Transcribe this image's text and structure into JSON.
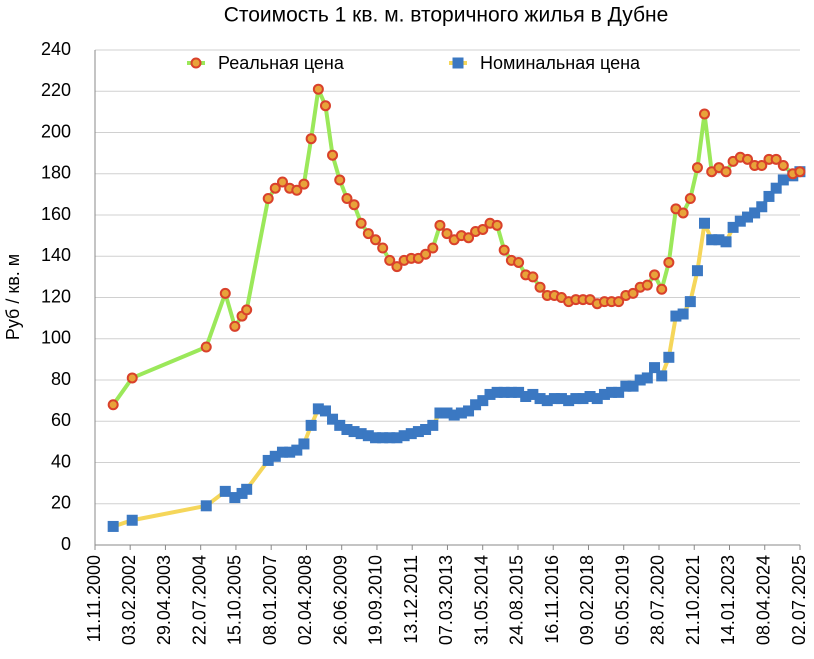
{
  "chart_data": {
    "type": "line",
    "title": "Стоимость 1 кв. м. вторичного жилья в Дубне",
    "y_label": "Руб / кв. м",
    "x": [
      "2001-07-01",
      "2002-03-01",
      "2004-10-01",
      "2005-06-01",
      "2005-10-01",
      "2006-01-01",
      "2006-03-01",
      "2006-12-01",
      "2007-03-01",
      "2007-06-01",
      "2007-09-01",
      "2007-12-01",
      "2008-03-01",
      "2008-06-01",
      "2008-09-01",
      "2008-12-01",
      "2009-03-01",
      "2009-06-01",
      "2009-09-01",
      "2009-12-01",
      "2010-03-01",
      "2010-06-01",
      "2010-09-01",
      "2010-12-01",
      "2011-03-01",
      "2011-06-01",
      "2011-09-01",
      "2011-12-01",
      "2012-03-01",
      "2012-06-01",
      "2012-09-01",
      "2012-12-01",
      "2013-03-01",
      "2013-06-01",
      "2013-09-01",
      "2013-12-01",
      "2014-03-01",
      "2014-06-01",
      "2014-09-01",
      "2014-12-01",
      "2015-03-01",
      "2015-06-01",
      "2015-09-01",
      "2015-12-01",
      "2016-03-01",
      "2016-06-01",
      "2016-09-01",
      "2016-12-01",
      "2017-03-01",
      "2017-06-01",
      "2017-09-01",
      "2017-12-01",
      "2018-03-01",
      "2018-06-01",
      "2018-09-01",
      "2018-12-01",
      "2019-03-01",
      "2019-06-01",
      "2019-09-01",
      "2019-12-01",
      "2020-03-01",
      "2020-06-01",
      "2020-09-01",
      "2020-12-01",
      "2021-03-01",
      "2021-06-01",
      "2021-09-01",
      "2021-12-01",
      "2022-03-01",
      "2022-06-01",
      "2022-09-01",
      "2022-12-01",
      "2023-03-01",
      "2023-06-01",
      "2023-09-01",
      "2023-12-01",
      "2024-03-01",
      "2024-06-01",
      "2024-09-01",
      "2024-12-01",
      "2025-04-01",
      "2025-07-01"
    ],
    "series": [
      {
        "name": "Реальная цена",
        "color": "#9be85a",
        "marker_color": "#d9412b",
        "marker_fill": "#e8a33a",
        "marker": "circle",
        "values": [
          68,
          81,
          96,
          122,
          106,
          111,
          114,
          168,
          173,
          176,
          173,
          172,
          175,
          197,
          221,
          213,
          189,
          177,
          168,
          165,
          156,
          151,
          148,
          144,
          138,
          135,
          138,
          139,
          139,
          141,
          144,
          155,
          151,
          148,
          150,
          149,
          152,
          153,
          156,
          155,
          143,
          138,
          137,
          131,
          130,
          125,
          121,
          121,
          120,
          118,
          119,
          119,
          119,
          117,
          118,
          118,
          118,
          121,
          122,
          125,
          126,
          131,
          124,
          137,
          163,
          161,
          168,
          183,
          209,
          181,
          183,
          181,
          186,
          188,
          187,
          184,
          184,
          187,
          187,
          184,
          180,
          181
        ]
      },
      {
        "name": "Номинальная цена",
        "color": "#f5d65a",
        "marker_color": "#3b78c2",
        "marker_fill": "#3b78c2",
        "marker": "square",
        "values": [
          9,
          12,
          19,
          26,
          23,
          25,
          27,
          41,
          43,
          45,
          45,
          46,
          49,
          58,
          66,
          65,
          61,
          58,
          56,
          55,
          54,
          53,
          52,
          52,
          52,
          52,
          53,
          54,
          55,
          56,
          58,
          64,
          64,
          63,
          64,
          65,
          68,
          70,
          73,
          74,
          74,
          74,
          74,
          72,
          73,
          71,
          70,
          71,
          71,
          70,
          71,
          71,
          72,
          71,
          73,
          74,
          74,
          77,
          77,
          80,
          81,
          86,
          82,
          91,
          111,
          112,
          118,
          133,
          156,
          148,
          148,
          147,
          154,
          157,
          159,
          161,
          164,
          169,
          173,
          177,
          179,
          181
        ]
      }
    ],
    "xlim": [
      "2000-11-11",
      "2025-07-02"
    ],
    "xticks": [
      {
        "value": "2000-11-11",
        "label": "11.11.2000"
      },
      {
        "value": "2002-02-03",
        "label": "03.02.2002"
      },
      {
        "value": "2003-04-29",
        "label": "29.04.2003"
      },
      {
        "value": "2004-07-22",
        "label": "22.07.2004"
      },
      {
        "value": "2005-10-15",
        "label": "15.10.2005"
      },
      {
        "value": "2007-01-08",
        "label": "08.01.2007"
      },
      {
        "value": "2008-04-02",
        "label": "02.04.2008"
      },
      {
        "value": "2009-06-26",
        "label": "26.06.2009"
      },
      {
        "value": "2010-09-19",
        "label": "19.09.2010"
      },
      {
        "value": "2011-12-13",
        "label": "13.12.2011"
      },
      {
        "value": "2013-03-07",
        "label": "07.03.2013"
      },
      {
        "value": "2014-05-31",
        "label": "31.05.2014"
      },
      {
        "value": "2015-08-24",
        "label": "24.08.2015"
      },
      {
        "value": "2016-11-16",
        "label": "16.11.2016"
      },
      {
        "value": "2018-02-09",
        "label": "09.02.2018"
      },
      {
        "value": "2019-05-05",
        "label": "05.05.2019"
      },
      {
        "value": "2020-07-28",
        "label": "28.07.2020"
      },
      {
        "value": "2021-10-21",
        "label": "21.10.2021"
      },
      {
        "value": "2023-01-14",
        "label": "14.01.2023"
      },
      {
        "value": "2024-04-08",
        "label": "08.04.2024"
      },
      {
        "value": "2025-07-02",
        "label": "02.07.2025"
      }
    ],
    "ylim": [
      0,
      240
    ],
    "yticks": [
      0,
      20,
      40,
      60,
      80,
      100,
      120,
      140,
      160,
      180,
      200,
      220,
      240
    ],
    "grid": true
  }
}
